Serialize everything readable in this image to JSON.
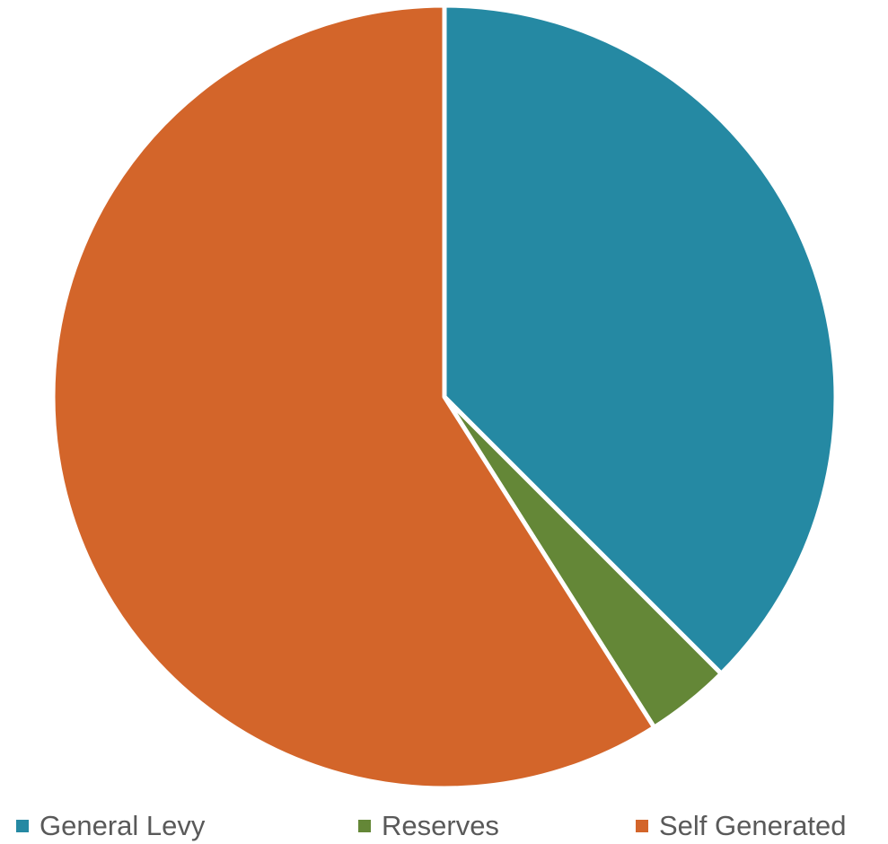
{
  "chart_data": {
    "type": "pie",
    "title": "",
    "categories": [
      "General Levy",
      "Reserves",
      "Self Generated"
    ],
    "values": [
      37.5,
      3.5,
      59.0
    ],
    "colors": [
      "#2589a3",
      "#648737",
      "#d3652a"
    ],
    "legend_position": "bottom",
    "start_angle_deg": 0,
    "direction": "clockwise"
  }
}
